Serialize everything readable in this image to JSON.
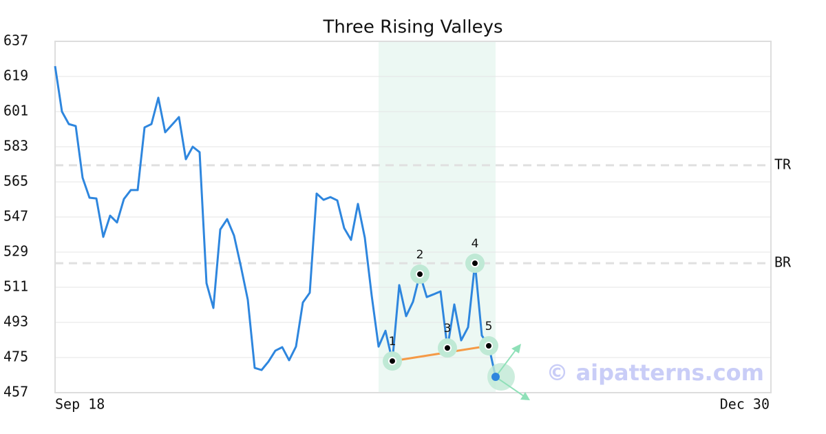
{
  "chart_data": {
    "type": "line",
    "title": "Three Rising Valleys",
    "categories": [
      "Sep 18",
      null,
      null,
      null,
      null,
      null,
      null,
      null,
      null,
      null,
      null,
      null,
      null,
      null,
      null,
      null,
      null,
      null,
      null,
      null,
      null,
      null,
      null,
      null,
      null,
      null,
      null,
      null,
      null,
      null,
      null,
      null,
      null,
      null,
      null,
      null,
      null,
      null,
      null,
      null,
      null,
      null,
      null,
      null,
      null,
      null,
      null,
      null,
      null,
      null,
      null,
      null,
      null,
      null,
      null,
      null,
      null,
      null,
      null,
      null,
      null,
      null,
      null,
      null,
      null,
      null,
      null,
      null,
      null,
      null,
      null,
      null,
      null,
      null,
      null,
      null,
      null,
      null,
      null,
      null,
      null,
      null,
      null,
      null,
      null,
      null,
      null,
      null,
      null,
      null,
      null,
      null,
      null,
      null,
      null,
      null,
      null,
      null,
      null,
      null,
      null,
      null,
      null,
      null,
      "Dec 30"
    ],
    "series": [
      {
        "color": "#2e86de",
        "values": [
          624.3,
          601,
          594.6,
          593.6,
          567.1,
          556.9,
          556.5,
          536.8,
          547.7,
          544.2,
          556.2,
          560.8,
          560.8,
          592.9,
          594.6,
          608.1,
          590.4,
          594.3,
          598.2,
          576.6,
          583,
          580.2,
          513.1,
          500.4,
          540.6,
          545.9,
          537.5,
          521.6,
          504.6,
          469.7,
          468.6,
          472.9,
          478.5,
          480.3,
          473.6,
          480.6,
          503.2,
          508.2,
          559,
          555.8,
          557.2,
          555.5,
          541.3,
          535.3,
          553.7,
          536.4,
          506.7,
          480.6,
          488.7,
          473.2,
          512.1,
          496.2,
          503.6,
          517.7,
          506,
          507.4,
          508.9,
          479.9,
          502.2,
          483.8,
          490.5,
          523.3,
          486.3,
          481,
          465.1,
          null,
          null,
          null,
          null,
          null,
          null,
          null,
          null,
          null,
          null,
          null,
          null,
          null,
          null,
          null,
          null,
          null,
          null,
          null,
          null,
          null,
          null,
          null,
          null,
          null,
          null,
          null,
          null,
          null,
          null,
          null,
          null,
          null,
          null,
          null,
          null,
          null,
          null,
          null,
          null
        ]
      }
    ],
    "ylim": [
      457,
      637
    ],
    "yticks": [
      457,
      475,
      493,
      511,
      529,
      547,
      565,
      583,
      601,
      619,
      637
    ],
    "grid": true,
    "reference_lines": [
      {
        "label": "TR",
        "value": 573.5
      },
      {
        "label": "BR",
        "value": 523.3
      }
    ],
    "highlight": {
      "start_index": 47,
      "end_index": 64
    },
    "pattern_points": [
      {
        "label": "1",
        "index": 49,
        "value": 473.2
      },
      {
        "label": "2",
        "index": 53,
        "value": 517.7
      },
      {
        "label": "3",
        "index": 57,
        "value": 479.9
      },
      {
        "label": "4",
        "index": 61,
        "value": 523.3
      },
      {
        "label": "5",
        "index": 63,
        "value": 481
      }
    ],
    "watermark": "© aipatterns.com"
  }
}
